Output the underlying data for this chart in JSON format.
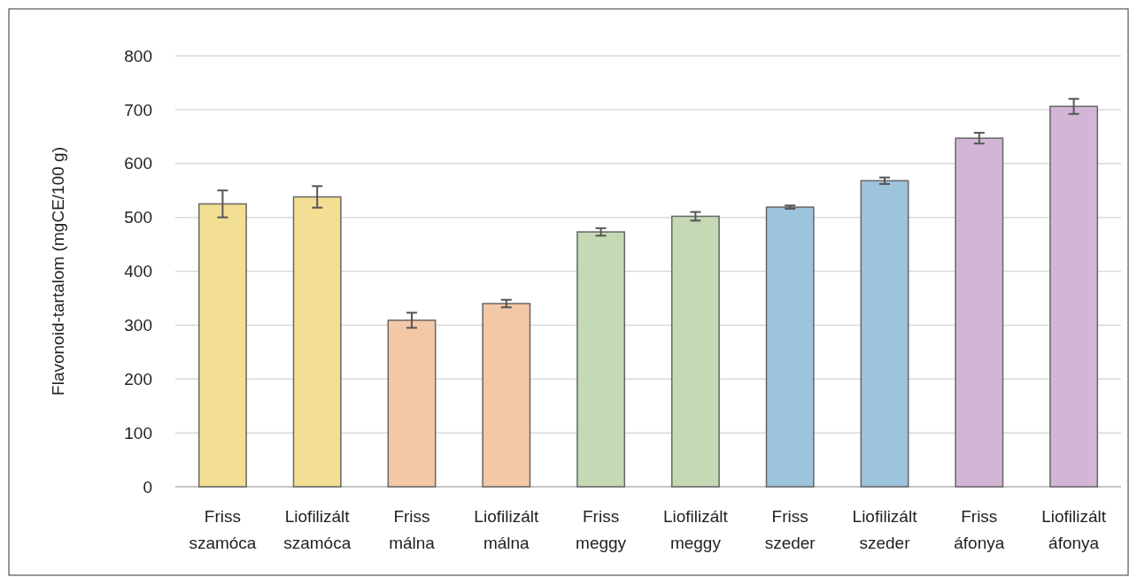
{
  "chart_data": {
    "type": "bar",
    "ylabel": "Flavonoid-tartalom (mgCE/100 g)",
    "categories": [
      "Friss szamóca",
      "Liofilizált szamóca",
      "Friss málna",
      "Liofilizált málna",
      "Friss meggy",
      "Liofilizált meggy",
      "Friss szeder",
      "Liofilizált szeder",
      "Friss áfonya",
      "Liofilizált áfonya"
    ],
    "values": [
      525,
      538,
      309,
      340,
      473,
      502,
      519,
      568,
      647,
      706
    ],
    "errors": [
      25,
      20,
      14,
      7,
      7,
      8,
      3,
      6,
      10,
      14
    ],
    "colors": [
      "#f3df93",
      "#f3df93",
      "#f3c8a6",
      "#f3c8a6",
      "#c5d9b4",
      "#c5d9b4",
      "#9dc3dd",
      "#9dc3dd",
      "#d3b6d6",
      "#d3b6d6"
    ],
    "ylim": [
      0,
      800
    ],
    "yticks": [
      0,
      100,
      200,
      300,
      400,
      500,
      600,
      700,
      800
    ],
    "grid": "y"
  }
}
